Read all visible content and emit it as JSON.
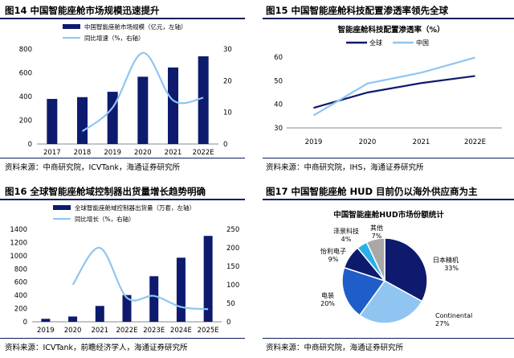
{
  "colors": {
    "navy": "#0d1a6e",
    "light": "#8fc5f0",
    "dark_navy": "#0a1f5c"
  },
  "panels": [
    {
      "title": "图14 中国智能座舱市场规模迅速提升",
      "source": "资料来源：中商研究院，ICVTank，海通证券研究所"
    },
    {
      "title": "图15 中国智能座舱科技配置渗透率领先全球",
      "source": "资料来源：中商研究院，IHS，海通证券研究所"
    },
    {
      "title": "图16 全球智能座舱域控制器出货量增长趋势明确",
      "source": "资料来源：ICVTank，前瞻经济学人，海通证券研究所"
    },
    {
      "title": "图17 中国智能座舱 HUD 目前仍以海外供应商为主",
      "source": "资料来源：中商研究院，海通证券研究所"
    }
  ],
  "chart_data": [
    {
      "type": "bar",
      "categories": [
        "2017",
        "2018",
        "2019",
        "2020",
        "2021",
        "2022E"
      ],
      "series": [
        {
          "name": "中国智能座舱市场规模（亿元，左轴）",
          "values": [
            380,
            395,
            440,
            567,
            645,
            739
          ]
        },
        {
          "name": "同比增速（%，右轴）",
          "values": [
            null,
            4,
            11.5,
            28.8,
            13.8,
            14.6
          ]
        }
      ],
      "ylim": [
        0,
        800
      ],
      "y_ticks": [
        0,
        200,
        400,
        600,
        800
      ],
      "y2lim": [
        0,
        30
      ],
      "y2_ticks": [
        0,
        10,
        20,
        30
      ]
    },
    {
      "type": "line",
      "title": "智能座舱科技配置渗透率（%）",
      "categories": [
        "2019",
        "2020",
        "2021",
        "2022E"
      ],
      "series": [
        {
          "name": "全球",
          "values": [
            38.5,
            45,
            49,
            52
          ]
        },
        {
          "name": "中国",
          "values": [
            35.3,
            48.8,
            53.4,
            59.8
          ]
        }
      ],
      "ylim": [
        30,
        60
      ],
      "y_ticks": [
        30,
        40,
        50,
        60
      ]
    },
    {
      "type": "bar",
      "categories": [
        "2019",
        "2020",
        "2021",
        "2022E",
        "2023E",
        "2024E",
        "2025E"
      ],
      "series": [
        {
          "name": "全球智能座舱域控制器出货量（万套，左轴）",
          "values": [
            45,
            80,
            240,
            405,
            690,
            970,
            1300
          ]
        },
        {
          "name": "同比增长（%，右轴）",
          "values": [
            null,
            100,
            200,
            65,
            70,
            40,
            34
          ]
        }
      ],
      "ylim": [
        0,
        1400
      ],
      "y_ticks": [
        0,
        200,
        400,
        600,
        800,
        1000,
        1200,
        1400
      ],
      "y2lim": [
        0,
        250
      ],
      "y2_ticks": [
        0,
        50,
        100,
        150,
        200,
        250
      ]
    },
    {
      "type": "pie",
      "title": "中国智能座舱HUD市场份额统计",
      "slices": [
        {
          "name": "日本精机",
          "value": 33,
          "label": "33%"
        },
        {
          "name": "Continental",
          "value": 27,
          "label": "27%"
        },
        {
          "name": "电装",
          "value": 20,
          "label": "20%"
        },
        {
          "name": "怡利电子",
          "value": 9,
          "label": "9%"
        },
        {
          "name": "泽景科技",
          "value": 4,
          "label": "4%"
        },
        {
          "name": "其他",
          "value": 7,
          "label": "7%"
        }
      ]
    }
  ]
}
